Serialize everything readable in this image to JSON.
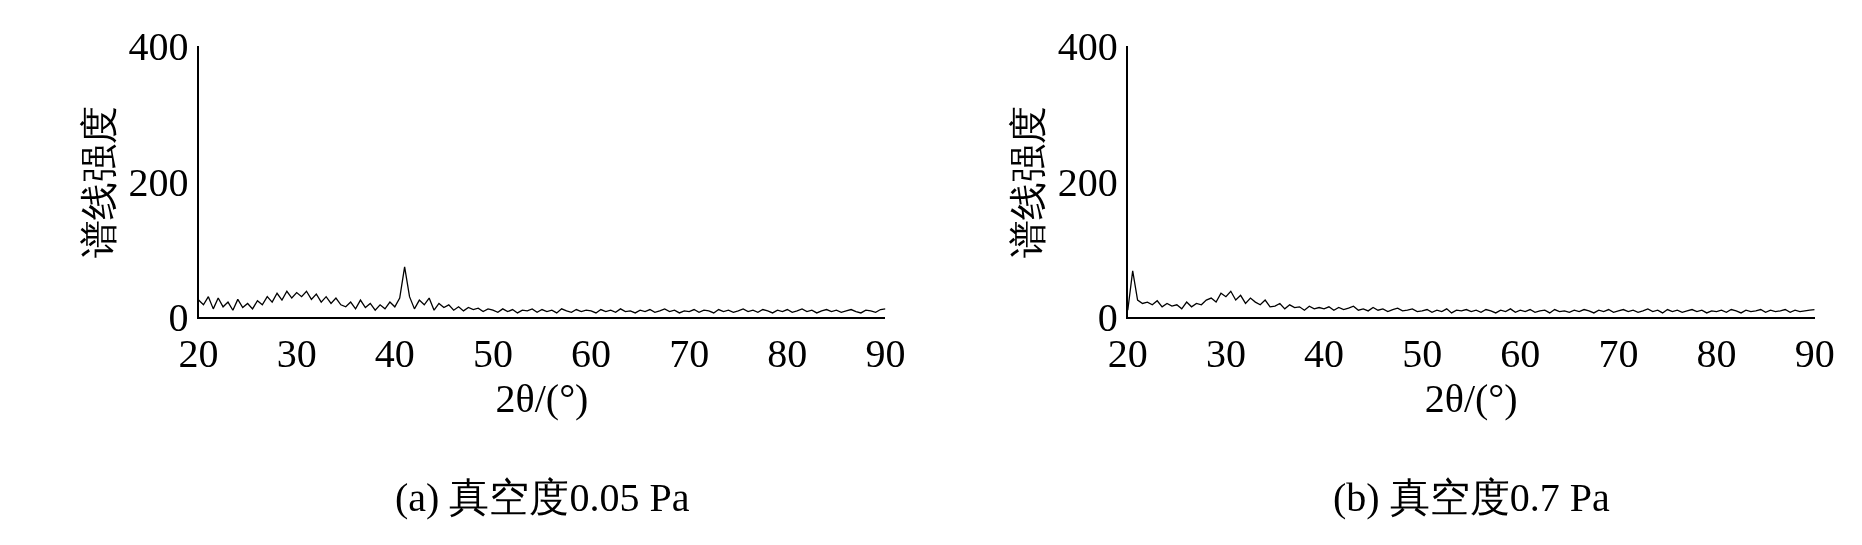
{
  "chart_data": [
    {
      "type": "line",
      "title": "(a) 真空度0.05 Pa",
      "xlabel": "2θ/(°)",
      "ylabel": "谱线强度",
      "x": [
        20,
        20.5,
        21,
        21.5,
        22,
        22.5,
        23,
        23.5,
        24,
        24.5,
        25,
        25.5,
        26,
        26.5,
        27,
        27.5,
        28,
        28.5,
        29,
        29.5,
        30,
        30.5,
        31,
        31.5,
        32,
        32.5,
        33,
        33.5,
        34,
        34.5,
        35,
        35.5,
        36,
        36.5,
        37,
        37.5,
        38,
        38.5,
        39,
        39.5,
        40,
        40.5,
        41,
        41.5,
        42,
        42.5,
        43,
        43.5,
        44,
        44.5,
        45,
        45.5,
        46,
        46.5,
        47,
        47.5,
        48,
        48.5,
        49,
        49.5,
        50,
        50.5,
        51,
        51.5,
        52,
        52.5,
        53,
        53.5,
        54,
        54.5,
        55,
        55.5,
        56,
        56.5,
        57,
        57.5,
        58,
        58.5,
        59,
        59.5,
        60,
        60.5,
        61,
        61.5,
        62,
        62.5,
        63,
        63.5,
        64,
        64.5,
        65,
        65.5,
        66,
        66.5,
        67,
        67.5,
        68,
        68.5,
        69,
        69.5,
        70,
        70.5,
        71,
        71.5,
        72,
        72.5,
        73,
        73.5,
        74,
        74.5,
        75,
        75.5,
        76,
        76.5,
        77,
        77.5,
        78,
        78.5,
        79,
        79.5,
        80,
        80.5,
        81,
        81.5,
        82,
        82.5,
        83,
        83.5,
        84,
        84.5,
        85,
        85.5,
        86,
        86.5,
        87,
        87.5,
        88,
        88.5,
        89,
        89.5,
        90
      ],
      "series": [
        {
          "color": "#000000",
          "values": [
            25,
            18,
            30,
            12,
            28,
            15,
            22,
            10,
            26,
            14,
            20,
            12,
            24,
            18,
            30,
            22,
            35,
            25,
            38,
            28,
            36,
            30,
            38,
            26,
            34,
            22,
            30,
            20,
            28,
            18,
            15,
            22,
            12,
            25,
            14,
            20,
            10,
            18,
            12,
            22,
            15,
            28,
            74,
            30,
            12,
            25,
            18,
            28,
            10,
            20,
            14,
            18,
            10,
            15,
            9,
            14,
            11,
            13,
            8,
            12,
            10,
            7,
            12,
            8,
            11,
            6,
            10,
            9,
            12,
            7,
            11,
            8,
            10,
            6,
            12,
            9,
            7,
            11,
            8,
            10,
            9,
            6,
            11,
            8,
            10,
            7,
            12,
            8,
            9,
            6,
            10,
            8,
            11,
            7,
            9,
            12,
            8,
            10,
            6,
            9,
            8,
            11,
            7,
            10,
            9,
            6,
            11,
            8,
            10,
            7,
            9,
            12,
            8,
            10,
            7,
            11,
            9,
            6,
            10,
            8,
            11,
            7,
            9,
            12,
            8,
            10,
            6,
            9,
            11,
            8,
            10,
            7,
            9,
            11,
            8,
            6,
            10,
            9,
            7,
            11,
            12
          ]
        }
      ],
      "xlim": [
        20,
        90
      ],
      "ylim": [
        0,
        400
      ],
      "xticks": [
        20,
        30,
        40,
        50,
        60,
        70,
        80,
        90
      ],
      "yticks": [
        0,
        200,
        400
      ]
    },
    {
      "type": "line",
      "title": "(b) 真空度0.7 Pa",
      "xlabel": "2θ/(°)",
      "ylabel": "谱线强度",
      "x": [
        20,
        20.5,
        21,
        21.5,
        22,
        22.5,
        23,
        23.5,
        24,
        24.5,
        25,
        25.5,
        26,
        26.5,
        27,
        27.5,
        28,
        28.5,
        29,
        29.5,
        30,
        30.5,
        31,
        31.5,
        32,
        32.5,
        33,
        33.5,
        34,
        34.5,
        35,
        35.5,
        36,
        36.5,
        37,
        37.5,
        38,
        38.5,
        39,
        39.5,
        40,
        40.5,
        41,
        41.5,
        42,
        42.5,
        43,
        43.5,
        44,
        44.5,
        45,
        45.5,
        46,
        46.5,
        47,
        47.5,
        48,
        48.5,
        49,
        49.5,
        50,
        50.5,
        51,
        51.5,
        52,
        52.5,
        53,
        53.5,
        54,
        54.5,
        55,
        55.5,
        56,
        56.5,
        57,
        57.5,
        58,
        58.5,
        59,
        59.5,
        60,
        60.5,
        61,
        61.5,
        62,
        62.5,
        63,
        63.5,
        64,
        64.5,
        65,
        65.5,
        66,
        66.5,
        67,
        67.5,
        68,
        68.5,
        69,
        69.5,
        70,
        70.5,
        71,
        71.5,
        72,
        72.5,
        73,
        73.5,
        74,
        74.5,
        75,
        75.5,
        76,
        76.5,
        77,
        77.5,
        78,
        78.5,
        79,
        79.5,
        80,
        80.5,
        81,
        81.5,
        82,
        82.5,
        83,
        83.5,
        84,
        84.5,
        85,
        85.5,
        86,
        86.5,
        87,
        87.5,
        88,
        88.5,
        89,
        89.5,
        90
      ],
      "series": [
        {
          "color": "#000000",
          "values": [
            10,
            68,
            25,
            20,
            22,
            18,
            24,
            15,
            20,
            16,
            18,
            12,
            22,
            15,
            20,
            18,
            25,
            28,
            22,
            35,
            30,
            38,
            25,
            32,
            20,
            28,
            22,
            18,
            25,
            15,
            16,
            20,
            12,
            18,
            14,
            15,
            10,
            16,
            12,
            14,
            12,
            15,
            10,
            14,
            11,
            13,
            16,
            10,
            12,
            9,
            14,
            10,
            12,
            8,
            11,
            13,
            9,
            10,
            12,
            8,
            9,
            11,
            7,
            10,
            8,
            12,
            6,
            10,
            9,
            11,
            8,
            10,
            7,
            11,
            9,
            6,
            10,
            8,
            12,
            7,
            10,
            8,
            11,
            7,
            9,
            10,
            6,
            11,
            8,
            9,
            7,
            10,
            8,
            11,
            9,
            6,
            10,
            8,
            11,
            7,
            9,
            11,
            8,
            10,
            7,
            9,
            12,
            8,
            10,
            6,
            11,
            8,
            10,
            7,
            9,
            11,
            8,
            10,
            6,
            9,
            8,
            10,
            7,
            11,
            9,
            6,
            10,
            8,
            9,
            11,
            7,
            10,
            8,
            9,
            11,
            7,
            10,
            8,
            9,
            10,
            11
          ]
        }
      ],
      "xlim": [
        20,
        90
      ],
      "ylim": [
        0,
        400
      ],
      "xticks": [
        20,
        30,
        40,
        50,
        60,
        70,
        80,
        90
      ],
      "yticks": [
        0,
        200,
        400
      ]
    }
  ]
}
